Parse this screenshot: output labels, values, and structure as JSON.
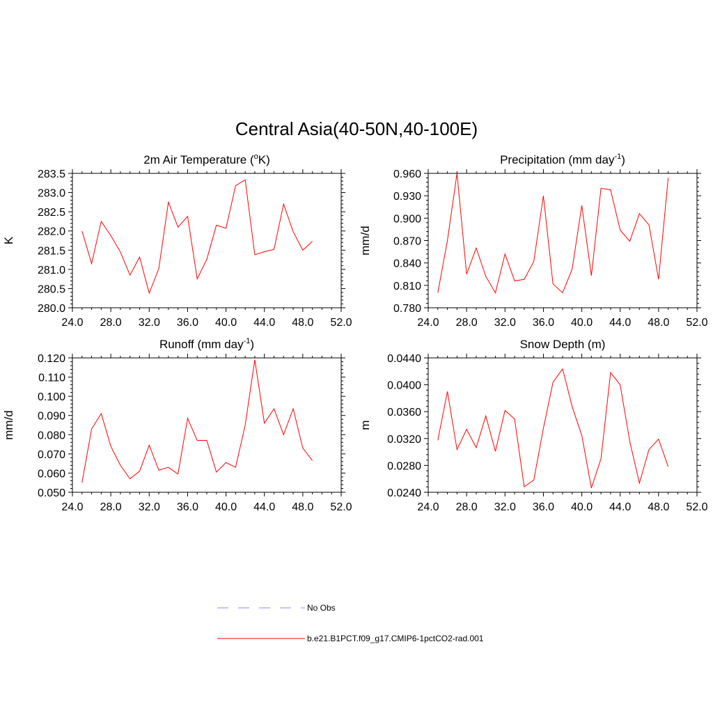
{
  "figure": {
    "title": "Central Asia(40-50N,40-100E)",
    "line_color": "#ff0000",
    "obs_color": "#a0a0ff"
  },
  "legend": {
    "obs_label": "No Obs",
    "model_label": "b.e21.B1PCT.f09_g17.CMIP6-1pctCO2-rad.001"
  },
  "chart_data": [
    {
      "type": "line",
      "title": "2m Air Temperature (",
      "title_sup": "o",
      "title_tail": "K)",
      "ylabel": "K",
      "xlim": [
        24,
        52
      ],
      "ylim": [
        280.0,
        283.5
      ],
      "xticks": [
        "24.0",
        "28.0",
        "32.0",
        "36.0",
        "40.0",
        "44.0",
        "48.0",
        "52.0"
      ],
      "yticks": [
        "280.0",
        "280.5",
        "281.0",
        "281.5",
        "282.0",
        "282.5",
        "283.0",
        "283.5"
      ],
      "x": [
        25,
        26,
        27,
        28,
        29,
        30,
        31,
        32,
        33,
        34,
        35,
        36,
        37,
        38,
        39,
        40,
        41,
        42,
        43,
        44,
        45,
        46,
        47,
        48,
        49
      ],
      "series": [
        {
          "values": [
            282.0,
            281.15,
            282.25,
            281.88,
            281.45,
            280.85,
            281.32,
            280.38,
            281.02,
            282.75,
            282.1,
            282.38,
            280.75,
            281.26,
            282.15,
            282.07,
            283.18,
            283.33,
            281.38,
            281.46,
            281.52,
            282.7,
            281.98,
            281.5,
            281.73
          ]
        }
      ]
    },
    {
      "type": "line",
      "title": "Precipitation (mm day",
      "title_sup": "-1",
      "title_tail": ")",
      "ylabel": "mm/d",
      "xlim": [
        24,
        52
      ],
      "ylim": [
        0.78,
        0.96
      ],
      "xticks": [
        "24.0",
        "28.0",
        "32.0",
        "36.0",
        "40.0",
        "44.0",
        "48.0",
        "52.0"
      ],
      "yticks": [
        "0.780",
        "0.810",
        "0.840",
        "0.870",
        "0.900",
        "0.930",
        "0.960"
      ],
      "x": [
        25,
        26,
        27,
        28,
        29,
        30,
        31,
        32,
        33,
        34,
        35,
        36,
        37,
        38,
        39,
        40,
        41,
        42,
        43,
        44,
        45,
        46,
        47,
        48,
        49
      ],
      "series": [
        {
          "values": [
            0.8,
            0.87,
            0.96,
            0.825,
            0.86,
            0.822,
            0.8,
            0.852,
            0.816,
            0.818,
            0.842,
            0.93,
            0.812,
            0.8,
            0.832,
            0.917,
            0.823,
            0.94,
            0.938,
            0.884,
            0.869,
            0.906,
            0.891,
            0.818,
            0.954
          ]
        }
      ]
    },
    {
      "type": "line",
      "title": "Runoff (mm day",
      "title_sup": "-1",
      "title_tail": ")",
      "ylabel": "mm/d",
      "xlim": [
        24,
        52
      ],
      "ylim": [
        0.05,
        0.12
      ],
      "xticks": [
        "24.0",
        "28.0",
        "32.0",
        "36.0",
        "40.0",
        "44.0",
        "48.0",
        "52.0"
      ],
      "yticks": [
        "0.050",
        "0.060",
        "0.070",
        "0.080",
        "0.090",
        "0.100",
        "0.110",
        "0.120"
      ],
      "x": [
        25,
        26,
        27,
        28,
        29,
        30,
        31,
        32,
        33,
        34,
        35,
        36,
        37,
        38,
        39,
        40,
        41,
        42,
        43,
        44,
        45,
        46,
        47,
        48,
        49
      ],
      "series": [
        {
          "values": [
            0.055,
            0.083,
            0.091,
            0.074,
            0.064,
            0.057,
            0.061,
            0.0745,
            0.0615,
            0.063,
            0.0595,
            0.0885,
            0.077,
            0.077,
            0.0605,
            0.0655,
            0.063,
            0.085,
            0.119,
            0.086,
            0.0935,
            0.08,
            0.0935,
            0.073,
            0.0665
          ]
        }
      ]
    },
    {
      "type": "line",
      "title": "Snow Depth (m)",
      "title_sup": "",
      "title_tail": "",
      "ylabel": "m",
      "xlim": [
        24,
        52
      ],
      "ylim": [
        0.024,
        0.046
      ],
      "xticks": [
        "24.0",
        "28.0",
        "32.0",
        "36.0",
        "40.0",
        "44.0",
        "48.0",
        "52.0"
      ],
      "yticks": [
        "0.0240",
        "0.0280",
        "0.0320",
        "0.0360",
        "0.0400",
        "0.0440"
      ],
      "x": [
        25,
        26,
        27,
        28,
        29,
        30,
        31,
        32,
        33,
        34,
        35,
        36,
        37,
        38,
        39,
        40,
        41,
        42,
        43,
        44,
        45,
        46,
        47,
        48,
        49
      ],
      "series": [
        {
          "values": [
            0.0325,
            0.0405,
            0.031,
            0.0343,
            0.0313,
            0.0365,
            0.0307,
            0.0374,
            0.036,
            0.0249,
            0.026,
            0.0345,
            0.042,
            0.0442,
            0.038,
            0.0333,
            0.0247,
            0.0295,
            0.0436,
            0.0416,
            0.0323,
            0.0255,
            0.031,
            0.0327,
            0.0282
          ]
        }
      ]
    }
  ]
}
